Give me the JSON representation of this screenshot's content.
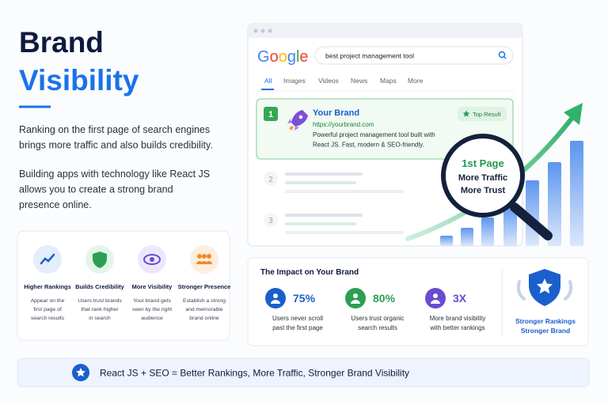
{
  "hero": {
    "title_line1": "Brand",
    "title_line2": "Visibility",
    "paragraph1": [
      "Ranking on the first page of search engines",
      "brings more traffic and also builds credibility."
    ],
    "paragraph2": [
      "Building apps with technology like React JS",
      "allows you to create a strong brand",
      "presence online."
    ]
  },
  "features": [
    {
      "title": "Higher Rankings",
      "description": [
        "Appear on the",
        "first page of",
        "search results"
      ]
    },
    {
      "title": "Builds Credibility",
      "description": [
        "Users trust brands",
        "that rank higher",
        "in search"
      ]
    },
    {
      "title": "More Visibility",
      "description": [
        "Your brand gets",
        "seen by the right",
        "audience"
      ]
    },
    {
      "title": "Stronger Presence",
      "description": [
        "Establish a strong",
        "and memorable",
        "brand online"
      ]
    }
  ],
  "search": {
    "logo": "Google",
    "query": "best project management tool",
    "tabs": [
      "All",
      "Images",
      "Videos",
      "News",
      "Maps",
      "More"
    ],
    "results": [
      {
        "rank": "1",
        "title": "Your Brand",
        "url": "https://yourbrand.com",
        "description": [
          "Powerful project management tool built with",
          "React JS. Fast, modern & SEO-friendly."
        ],
        "badge": "Top Result"
      },
      {
        "rank": "2"
      },
      {
        "rank": "3"
      }
    ]
  },
  "magnifier": [
    "1st Page",
    "More Traffic",
    "More Trust"
  ],
  "impact": {
    "title": "The Impact on Your Brand",
    "stats": [
      {
        "value": "75%",
        "description": [
          "Users never scroll",
          "past the first page"
        ]
      },
      {
        "value": "80%",
        "description": [
          "Users trust organic",
          "search results"
        ]
      },
      {
        "value": "3X",
        "description": [
          "More brand visibility",
          "with better rankings"
        ]
      }
    ],
    "badge": [
      "Stronger Rankings",
      "Stronger Brand"
    ]
  },
  "banner": "React JS + SEO = Better Rankings, More Traffic, Stronger Brand Visibility"
}
